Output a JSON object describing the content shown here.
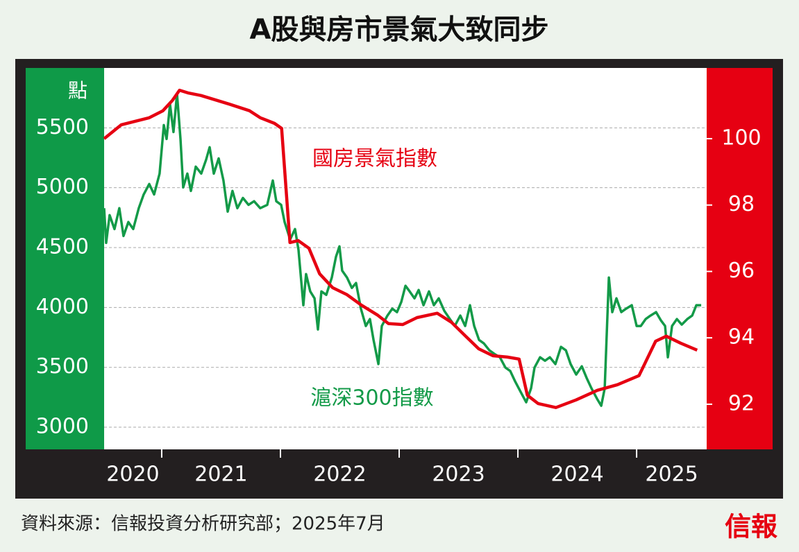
{
  "chart_data": {
    "type": "line",
    "title": "A股與房市景氣大致同步",
    "y_unit": "點",
    "source": "資料來源：信報投資分析研究部；2025年7月",
    "logo": "信報",
    "x_labels": [
      "2020",
      "2021",
      "2022",
      "2023",
      "2024",
      "2025"
    ],
    "xlim": [
      2020.515,
      2025.59
    ],
    "xticks": [
      2021,
      2022,
      2023,
      2024,
      2025
    ],
    "ylim": [
      2815,
      6000
    ],
    "yticks": [
      3000,
      3500,
      4000,
      4500,
      5000,
      5500
    ],
    "y2lim": [
      90.64,
      102.13
    ],
    "y2ticks": [
      92,
      94,
      96,
      98,
      100
    ],
    "grid": true,
    "series": [
      {
        "name": "國房景氣指數",
        "color": "#e60012",
        "axis": "y2",
        "x": [
          2020.515,
          2020.66,
          2020.895,
          2021.01,
          2021.09,
          2021.15,
          2021.22,
          2021.33,
          2021.57,
          2021.74,
          2021.83,
          2021.95,
          2022.01,
          2022.08,
          2022.15,
          2022.24,
          2022.33,
          2022.44,
          2022.56,
          2022.68,
          2022.82,
          2022.91,
          2023.03,
          2023.15,
          2023.32,
          2023.44,
          2023.56,
          2023.67,
          2023.79,
          2023.91,
          2024.01,
          2024.08,
          2024.17,
          2024.32,
          2024.49,
          2024.67,
          2024.84,
          2025.02,
          2025.16,
          2025.25,
          2025.37,
          2025.51
        ],
        "values": [
          100.0,
          100.42,
          100.63,
          100.84,
          101.15,
          101.46,
          101.38,
          101.3,
          101.04,
          100.84,
          100.63,
          100.46,
          100.31,
          96.87,
          96.93,
          96.7,
          95.93,
          95.51,
          95.3,
          94.99,
          94.68,
          94.43,
          94.4,
          94.61,
          94.74,
          94.47,
          94.05,
          93.67,
          93.46,
          93.42,
          93.36,
          92.27,
          92.02,
          91.9,
          92.13,
          92.42,
          92.59,
          92.86,
          93.9,
          94.05,
          93.84,
          93.63
        ]
      },
      {
        "name": "滬深300指數",
        "color": "#139a48",
        "x": [
          2020.515,
          2020.532,
          2020.561,
          2020.602,
          2020.643,
          2020.678,
          2020.719,
          2020.76,
          2020.807,
          2020.848,
          2020.895,
          2020.936,
          2020.982,
          2021.018,
          2021.041,
          2021.07,
          2021.099,
          2021.129,
          2021.158,
          2021.181,
          2021.216,
          2021.246,
          2021.287,
          2021.333,
          2021.374,
          2021.404,
          2021.439,
          2021.48,
          2021.52,
          2021.556,
          2021.596,
          2021.637,
          2021.684,
          2021.731,
          2021.778,
          2021.83,
          2021.889,
          2021.936,
          2021.965,
          2022.006,
          2022.035,
          2022.082,
          2022.123,
          2022.152,
          2022.193,
          2022.216,
          2022.251,
          2022.287,
          2022.316,
          2022.345,
          2022.386,
          2022.433,
          2022.468,
          2022.497,
          2022.52,
          2022.561,
          2022.602,
          2022.637,
          2022.678,
          2022.719,
          2022.754,
          2022.784,
          2022.825,
          2022.854,
          2022.901,
          2022.942,
          2022.982,
          2023.018,
          2023.053,
          2023.088,
          2023.129,
          2023.164,
          2023.205,
          2023.251,
          2023.292,
          2023.333,
          2023.38,
          2023.427,
          2023.468,
          2023.515,
          2023.556,
          2023.596,
          2023.632,
          2023.673,
          2023.713,
          2023.76,
          2023.801,
          2023.848,
          2023.895,
          2023.936,
          2023.977,
          2024.023,
          2024.07,
          2024.111,
          2024.14,
          2024.187,
          2024.228,
          2024.269,
          2024.316,
          2024.363,
          2024.404,
          2024.444,
          2024.491,
          2024.538,
          2024.579,
          2024.62,
          2024.667,
          2024.702,
          2024.731,
          2024.766,
          2024.795,
          2024.83,
          2024.871,
          2024.912,
          2024.959,
          2025.0,
          2025.035,
          2025.076,
          2025.117,
          2025.164,
          2025.205,
          2025.24,
          2025.263,
          2025.298,
          2025.339,
          2025.38,
          2025.427,
          2025.468,
          2025.503,
          2025.544
        ],
        "values": [
          4829,
          4539,
          4771,
          4655,
          4829,
          4597,
          4713,
          4655,
          4829,
          4944,
          5031,
          4944,
          5118,
          5523,
          5407,
          5697,
          5465,
          5784,
          5407,
          5002,
          5118,
          4973,
          5176,
          5118,
          5234,
          5338,
          5118,
          5245,
          5060,
          4800,
          4973,
          4829,
          4915,
          4857,
          4887,
          4829,
          4857,
          5060,
          4887,
          4857,
          4713,
          4568,
          4655,
          4481,
          4019,
          4279,
          4134,
          4076,
          3816,
          4134,
          4105,
          4250,
          4424,
          4510,
          4308,
          4250,
          4163,
          4204,
          3990,
          3845,
          3903,
          3729,
          3527,
          3845,
          3932,
          3990,
          3961,
          4047,
          4181,
          4134,
          4076,
          4146,
          4019,
          4134,
          4019,
          4076,
          3972,
          3903,
          3845,
          3932,
          3845,
          4019,
          3845,
          3729,
          3700,
          3642,
          3613,
          3584,
          3498,
          3469,
          3382,
          3295,
          3208,
          3324,
          3498,
          3584,
          3555,
          3584,
          3527,
          3671,
          3642,
          3527,
          3440,
          3509,
          3411,
          3324,
          3237,
          3179,
          3324,
          4250,
          3961,
          4076,
          3961,
          3990,
          4019,
          3845,
          3845,
          3903,
          3932,
          3961,
          3891,
          3845,
          3584,
          3845,
          3903,
          3857,
          3903,
          3932,
          4019,
          4019
        ]
      }
    ]
  }
}
